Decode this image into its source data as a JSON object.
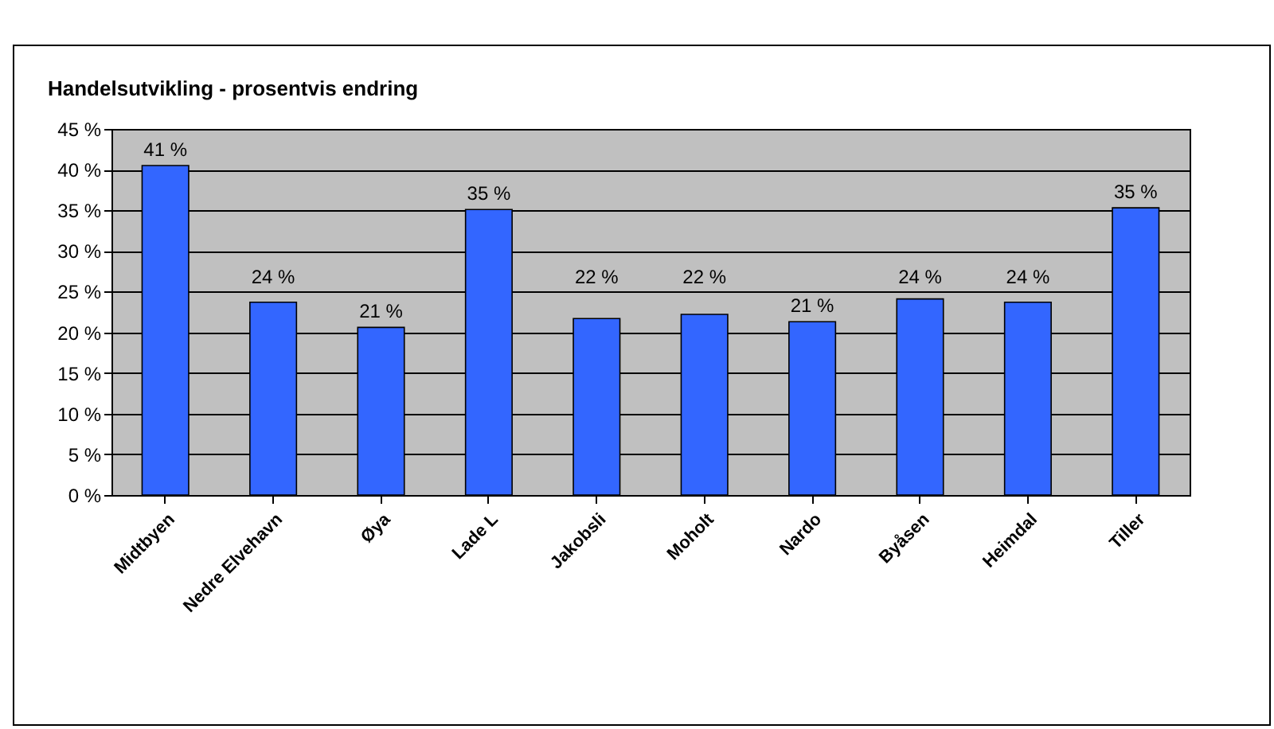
{
  "chart_data": {
    "type": "bar",
    "title": "Handelsutvikling - prosentvis endring",
    "categories": [
      "Midtbyen",
      "Nedre Elvehavn",
      "Øya",
      "Lade L",
      "Jakobsli",
      "Moholt",
      "Nardo",
      "Byåsen",
      "Heimdal",
      "Tiller"
    ],
    "values": [
      40.5,
      23.7,
      20.6,
      35.1,
      21.7,
      22.2,
      21.3,
      24.1,
      23.7,
      35.3
    ],
    "value_labels": [
      "41 %",
      "24 %",
      "21 %",
      "35 %",
      "22 %",
      "22 %",
      "21 %",
      "24 %",
      "24 %",
      "35 %"
    ],
    "color": "#3366ff",
    "ylim": [
      0,
      45
    ],
    "yticks": [
      {
        "value": 0,
        "label": "0 %"
      },
      {
        "value": 5,
        "label": "5 %"
      },
      {
        "value": 10,
        "label": "10 %"
      },
      {
        "value": 15,
        "label": "15 %"
      },
      {
        "value": 20,
        "label": "20 %"
      },
      {
        "value": 25,
        "label": "25 %"
      },
      {
        "value": 30,
        "label": "30 %"
      },
      {
        "value": 35,
        "label": "35 %"
      },
      {
        "value": 40,
        "label": "40 %"
      },
      {
        "value": 45,
        "label": "45 %"
      }
    ],
    "grid": "y"
  }
}
